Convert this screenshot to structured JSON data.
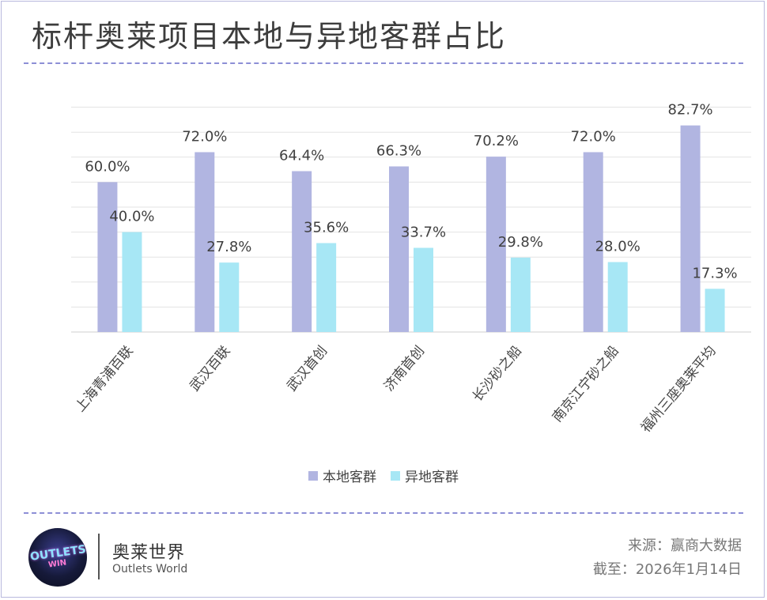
{
  "title": "标杆奥莱项目本地与异地客群占比",
  "colors": {
    "local": "#b1b5e1",
    "nonlocal": "#a7e7f5",
    "divider": "#8d8fd6"
  },
  "chart_data": {
    "type": "bar",
    "categories": [
      "上海青浦百联",
      "武汉百联",
      "武汉首创",
      "济南首创",
      "长沙砂之船",
      "南京江宁砂之船",
      "福州三座奥莱平均"
    ],
    "series": [
      {
        "name": "本地客群",
        "values": [
          60.0,
          72.0,
          64.4,
          66.3,
          70.2,
          72.0,
          82.7
        ],
        "labels": [
          "60.0%",
          "72.0%",
          "64.4%",
          "66.3%",
          "70.2%",
          "72.0%",
          "82.7%"
        ]
      },
      {
        "name": "异地客群",
        "values": [
          40.0,
          27.8,
          35.6,
          33.7,
          29.8,
          28.0,
          17.3
        ],
        "labels": [
          "40.0%",
          "27.8%",
          "35.6%",
          "33.7%",
          "29.8%",
          "28.0%",
          "17.3%"
        ]
      }
    ],
    "ylim": [
      0,
      90
    ],
    "grid": true,
    "legend": "bottom"
  },
  "legend": {
    "local": "本地客群",
    "nonlocal": "异地客群"
  },
  "footer": {
    "logo_line1": "OUTLETS",
    "logo_line2": "WIN",
    "brand_cn": "奥莱世界",
    "brand_en": "Outlets World",
    "source": "来源：赢商大数据",
    "date": "截至：2026年1月14日"
  }
}
